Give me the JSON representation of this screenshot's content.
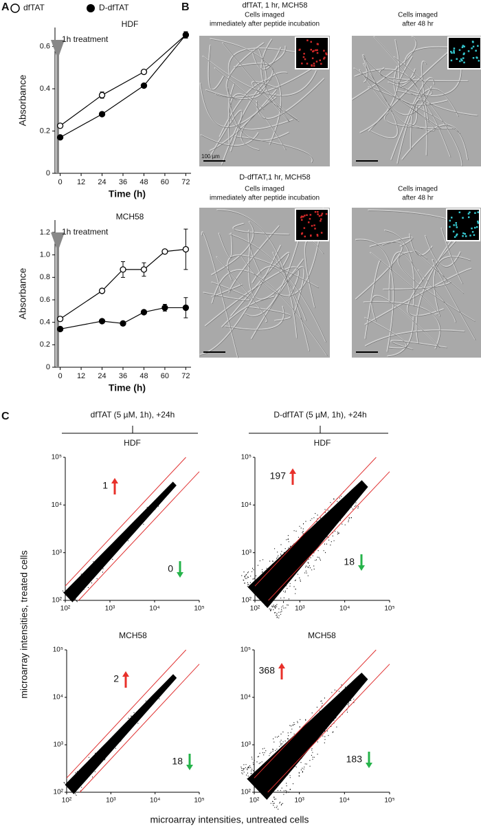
{
  "panels": {
    "a": "A",
    "b": "B",
    "c": "C"
  },
  "chart_data": [
    {
      "type": "line",
      "title": "HDF",
      "x_label": "Time (h)",
      "y_label": "Absorbance",
      "annotation": "1h treatment",
      "x": [
        0,
        24,
        48,
        72
      ],
      "xlim": [
        -3,
        75
      ],
      "xticks": [
        0,
        12,
        24,
        36,
        48,
        60,
        72
      ],
      "ylim": [
        0,
        0.69
      ],
      "yticks": [
        0,
        0.2,
        0.4,
        0.6
      ],
      "series": [
        {
          "name": "dfTAT",
          "marker": "open",
          "color": "#000000",
          "values": [
            0.225,
            0.37,
            0.48,
            0.655
          ],
          "errors": [
            0.008,
            0.015,
            0.01,
            0.015
          ]
        },
        {
          "name": "D-dfTAT",
          "marker": "filled",
          "color": "#000000",
          "values": [
            0.17,
            0.28,
            0.415,
            0.655
          ],
          "errors": [
            0.005,
            0.008,
            0.008,
            0.015
          ]
        }
      ]
    },
    {
      "type": "line",
      "title": "MCH58",
      "x_label": "Time (h)",
      "y_label": "Absorbance",
      "annotation": "1h treatment",
      "x": [
        0,
        24,
        36,
        48,
        60,
        72
      ],
      "xlim": [
        -3,
        75
      ],
      "xticks": [
        0,
        12,
        24,
        36,
        48,
        60,
        72
      ],
      "ylim": [
        0,
        1.31
      ],
      "yticks": [
        0,
        0.2,
        0.4,
        0.6,
        0.8,
        {
          "value": 1,
          "label": "1.0"
        },
        1.2
      ],
      "series": [
        {
          "marker": "open",
          "color": "#000000",
          "values": [
            0.43,
            0.68,
            0.87,
            0.87,
            1.03,
            1.05
          ],
          "errors": [
            0.02,
            0.01,
            0.07,
            0.06,
            0.01,
            0.18
          ]
        },
        {
          "marker": "filled",
          "color": "#000000",
          "values": [
            0.34,
            0.41,
            0.39,
            0.49,
            0.53,
            0.53
          ],
          "errors": [
            0.01,
            0.01,
            0.01,
            0.01,
            0.03,
            0.09
          ]
        }
      ]
    },
    {
      "type": "scatter",
      "title": "HDF",
      "log_scale": true,
      "xlim": [
        100,
        100000
      ],
      "ylim": [
        100,
        100000
      ],
      "xticks": [
        {
          "value": 100,
          "label": "10²"
        },
        {
          "value": 1000,
          "label": "10³"
        },
        {
          "value": 10000,
          "label": "10⁴"
        },
        {
          "value": 100000,
          "label": "10⁵"
        }
      ],
      "yticks": [
        {
          "value": 100,
          "label": "10²"
        },
        {
          "value": 1000,
          "label": "10³"
        },
        {
          "value": 10000,
          "label": "10⁴"
        },
        {
          "value": 100000,
          "label": "10⁵"
        }
      ],
      "annotations": [
        {
          "text": "1",
          "direction": "up",
          "color": "#e8302a"
        },
        {
          "text": "0",
          "direction": "down",
          "color": "#25b34a"
        }
      ]
    },
    {
      "type": "scatter",
      "title": "HDF",
      "log_scale": true,
      "xlim": [
        100,
        100000
      ],
      "ylim": [
        100,
        100000
      ],
      "xticks": [
        {
          "value": 100,
          "label": "10²"
        },
        {
          "value": 1000,
          "label": "10³"
        },
        {
          "value": 10000,
          "label": "10⁴"
        },
        {
          "value": 100000,
          "label": "10⁵"
        }
      ],
      "yticks": [
        {
          "value": 100,
          "label": "10²"
        },
        {
          "value": 1000,
          "label": "10³"
        },
        {
          "value": 10000,
          "label": "10⁴"
        },
        {
          "value": 100000,
          "label": "10⁵"
        }
      ],
      "annotations": [
        {
          "text": "197",
          "direction": "up",
          "color": "#e8302a"
        },
        {
          "text": "18",
          "direction": "down",
          "color": "#25b34a"
        }
      ]
    },
    {
      "type": "scatter",
      "title": "MCH58",
      "log_scale": true,
      "xlim": [
        100,
        100000
      ],
      "ylim": [
        100,
        100000
      ],
      "xticks": [
        {
          "value": 100,
          "label": "10²"
        },
        {
          "value": 1000,
          "label": "10³"
        },
        {
          "value": 10000,
          "label": "10⁴"
        },
        {
          "value": 100000,
          "label": "10⁵"
        }
      ],
      "yticks": [
        {
          "value": 100,
          "label": "10²"
        },
        {
          "value": 1000,
          "label": "10³"
        },
        {
          "value": 10000,
          "label": "10⁴"
        },
        {
          "value": 100000,
          "label": "10⁵"
        }
      ],
      "annotations": [
        {
          "text": "2",
          "direction": "up",
          "color": "#e8302a"
        },
        {
          "text": "18",
          "direction": "down",
          "color": "#25b34a"
        }
      ]
    },
    {
      "type": "scatter",
      "title": "MCH58",
      "log_scale": true,
      "xlim": [
        100,
        100000
      ],
      "ylim": [
        100,
        100000
      ],
      "xticks": [
        {
          "value": 100,
          "label": "10²"
        },
        {
          "value": 1000,
          "label": "10³"
        },
        {
          "value": 10000,
          "label": "10⁴"
        },
        {
          "value": 100000,
          "label": "10⁵"
        }
      ],
      "yticks": [
        {
          "value": 100,
          "label": "10²"
        },
        {
          "value": 1000,
          "label": "10³"
        },
        {
          "value": 10000,
          "label": "10⁴"
        },
        {
          "value": 100000,
          "label": "10⁵"
        }
      ],
      "annotations": [
        {
          "text": "368",
          "direction": "up",
          "color": "#e8302a"
        },
        {
          "text": "183",
          "direction": "down",
          "color": "#25b34a"
        }
      ]
    }
  ],
  "panel_b": {
    "rows": [
      {
        "title": "dfTAT, 1 hr, MCH58",
        "captions": [
          [
            "Cells imaged",
            "immediately after peptide incubation"
          ],
          [
            "Cells imaged",
            "after 48 hr"
          ]
        ]
      },
      {
        "title": "D-dfTAT,1 hr, MCH58",
        "captions": [
          [
            "Cells imaged",
            "immediately after peptide incubation"
          ],
          [
            "Cells imaged",
            "after 48 hr"
          ]
        ]
      }
    ],
    "scale_bar": "100 µm"
  },
  "panel_c": {
    "columns": [
      "dfTAT (5 µM, 1h), +24h",
      "D-dfTAT (5 µM, 1h), +24h"
    ],
    "y_label": "microarray intensities, treated cells",
    "x_label": "microarray intensities, untreated cells"
  }
}
